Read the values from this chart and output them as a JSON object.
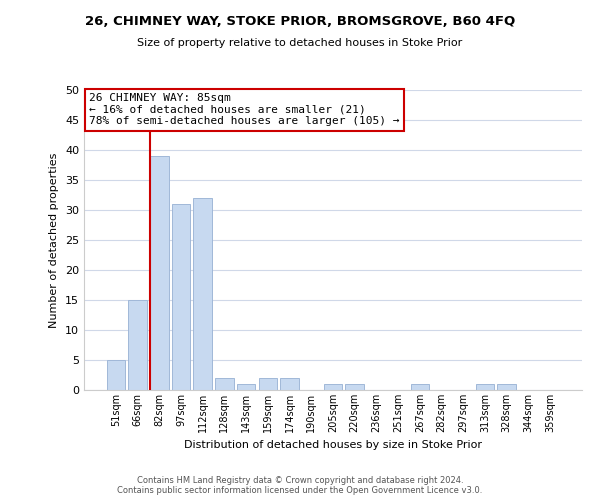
{
  "title": "26, CHIMNEY WAY, STOKE PRIOR, BROMSGROVE, B60 4FQ",
  "subtitle": "Size of property relative to detached houses in Stoke Prior",
  "xlabel": "Distribution of detached houses by size in Stoke Prior",
  "ylabel": "Number of detached properties",
  "bin_labels": [
    "51sqm",
    "66sqm",
    "82sqm",
    "97sqm",
    "112sqm",
    "128sqm",
    "143sqm",
    "159sqm",
    "174sqm",
    "190sqm",
    "205sqm",
    "220sqm",
    "236sqm",
    "251sqm",
    "267sqm",
    "282sqm",
    "297sqm",
    "313sqm",
    "328sqm",
    "344sqm",
    "359sqm"
  ],
  "bar_values": [
    5,
    15,
    39,
    31,
    32,
    2,
    1,
    2,
    2,
    0,
    1,
    1,
    0,
    0,
    1,
    0,
    0,
    1,
    1,
    0,
    0
  ],
  "bar_color": "#c7d9f0",
  "bar_edgecolor": "#a0b8d8",
  "annotation_title": "26 CHIMNEY WAY: 85sqm",
  "annotation_line1": "← 16% of detached houses are smaller (21)",
  "annotation_line2": "78% of semi-detached houses are larger (105) →",
  "annotation_box_color": "#ffffff",
  "annotation_box_edgecolor": "#cc0000",
  "marker_line_color": "#cc0000",
  "ylim": [
    0,
    50
  ],
  "yticks": [
    0,
    5,
    10,
    15,
    20,
    25,
    30,
    35,
    40,
    45,
    50
  ],
  "footer_line1": "Contains HM Land Registry data © Crown copyright and database right 2024.",
  "footer_line2": "Contains public sector information licensed under the Open Government Licence v3.0.",
  "background_color": "#ffffff",
  "grid_color": "#d0d8e8"
}
